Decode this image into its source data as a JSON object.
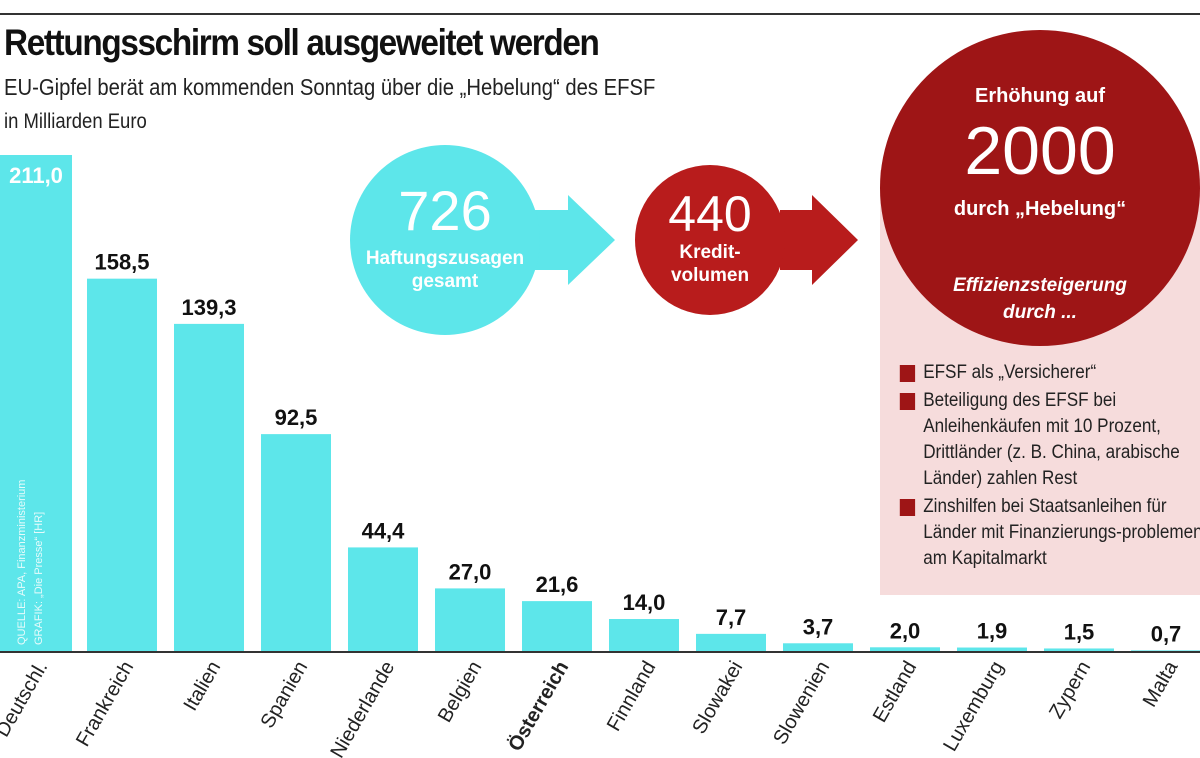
{
  "header": {
    "title": "Rettungsschirm soll ausgeweitet werden",
    "subtitle": "EU-Gipfel berät am kommenden Sonntag über die „Hebelung“ des EFSF",
    "unit": "in Milliarden Euro"
  },
  "source": {
    "line1": "QUELLE: APA, Finanzministerium",
    "line2": "GRAFIK: „Die Presse“ [HR]"
  },
  "colors": {
    "bars": "#5de6ea",
    "dark_red": "#9e1516",
    "red": "#b81c1c",
    "panel": "#f6dcdc"
  },
  "flow": {
    "circle1": {
      "value": "726",
      "label1": "Haftungszusagen",
      "label2": "gesamt"
    },
    "circle2": {
      "value": "440",
      "label1": "Kredit-",
      "label2": "volumen"
    },
    "circle3": {
      "top": "Erhöhung auf",
      "value": "2000",
      "label": "durch „Hebelung“",
      "sub1": "Effizienzsteigerung",
      "sub2": "durch ..."
    }
  },
  "measures": [
    "EFSF als „Versicherer“",
    "Beteiligung des EFSF bei Anleihenkäufen mit 10 Prozent, Drittländer (z. B. China, arabische Länder) zahlen Rest",
    "Zinshilfen bei Staatsanleihen für Länder mit Finanzierungs-problemen am Kapitalmarkt"
  ],
  "chart_data": {
    "type": "bar",
    "categories": [
      "Deutschl.",
      "Frankreich",
      "Italien",
      "Spanien",
      "Niederlande",
      "Belgien",
      "Österreich",
      "Finnland",
      "Slowakei",
      "Slowenien",
      "Estland",
      "Luxemburg",
      "Zypern",
      "Malta"
    ],
    "values": [
      211.0,
      158.5,
      139.3,
      92.5,
      44.4,
      27.0,
      21.6,
      14.0,
      7.7,
      3.7,
      2.0,
      1.9,
      1.5,
      0.7
    ],
    "labels": [
      "211,0",
      "158,5",
      "139,3",
      "92,5",
      "44,4",
      "27,0",
      "21,6",
      "14,0",
      "7,7",
      "3,7",
      "2,0",
      "1,9",
      "1,5",
      "0,7"
    ],
    "highlight": "Österreich",
    "ylabel": "in Milliarden Euro",
    "ylim": [
      0,
      211
    ],
    "grid": false
  }
}
